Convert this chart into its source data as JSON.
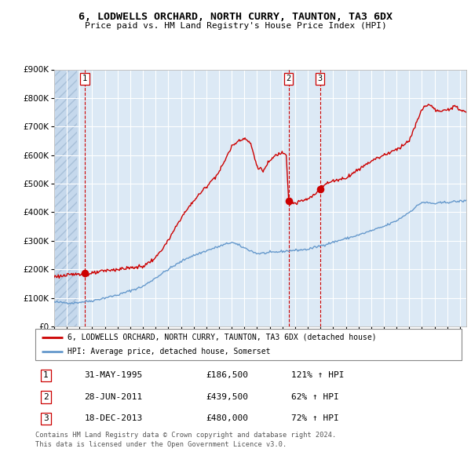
{
  "title": "6, LODWELLS ORCHARD, NORTH CURRY, TAUNTON, TA3 6DX",
  "subtitle": "Price paid vs. HM Land Registry's House Price Index (HPI)",
  "legend_line1": "6, LODWELLS ORCHARD, NORTH CURRY, TAUNTON, TA3 6DX (detached house)",
  "legend_line2": "HPI: Average price, detached house, Somerset",
  "footer1": "Contains HM Land Registry data © Crown copyright and database right 2024.",
  "footer2": "This data is licensed under the Open Government Licence v3.0.",
  "transactions": [
    {
      "num": 1,
      "date": "31-MAY-1995",
      "price": 186500,
      "pct": "121%",
      "dir": "↑"
    },
    {
      "num": 2,
      "date": "28-JUN-2011",
      "price": 439500,
      "pct": "62%",
      "dir": "↑"
    },
    {
      "num": 3,
      "date": "18-DEC-2013",
      "price": 480000,
      "pct": "72%",
      "dir": "↑"
    }
  ],
  "transaction_years": [
    1995.42,
    2011.49,
    2013.96
  ],
  "transaction_prices": [
    186500,
    439500,
    480000
  ],
  "hpi_color": "#6699cc",
  "price_color": "#cc0000",
  "dot_color": "#cc0000",
  "vline_color": "#cc0000",
  "background_color": "#dce9f5",
  "grid_color": "#ffffff",
  "ylim": [
    0,
    900000
  ],
  "xlim_start": 1993.0,
  "xlim_end": 2025.5,
  "hpi_anchors_x": [
    1993.0,
    1994.5,
    1996,
    1998,
    2000,
    2002,
    2003.5,
    2005,
    2007,
    2009,
    2010,
    2011.5,
    2013,
    2015,
    2017,
    2019,
    2020,
    2021,
    2022,
    2023,
    2024,
    2025.5
  ],
  "hpi_anchors_y": [
    85000,
    82000,
    90000,
    110000,
    140000,
    200000,
    240000,
    265000,
    295000,
    255000,
    258000,
    265000,
    270000,
    295000,
    320000,
    350000,
    370000,
    400000,
    435000,
    430000,
    435000,
    440000
  ],
  "price_anchors_x": [
    1993.0,
    1994,
    1995.0,
    1995.5,
    1996,
    1997,
    1998,
    1999,
    2000,
    2001,
    2002,
    2003,
    2004,
    2005,
    2006,
    2007,
    2007.5,
    2008,
    2008.5,
    2009,
    2009.5,
    2010,
    2010.5,
    2011.0,
    2011.3,
    2011.49,
    2011.6,
    2011.8,
    2012,
    2012.5,
    2013,
    2013.5,
    2013.96,
    2014.0,
    2014.5,
    2015,
    2016,
    2017,
    2018,
    2019,
    2020,
    2021,
    2022,
    2022.5,
    2023,
    2023.5,
    2024,
    2024.5,
    2025.0,
    2025.5
  ],
  "price_anchors_y": [
    175000,
    178000,
    186500,
    180000,
    185000,
    195000,
    200000,
    205000,
    210000,
    240000,
    300000,
    380000,
    440000,
    490000,
    540000,
    630000,
    650000,
    660000,
    640000,
    560000,
    545000,
    580000,
    600000,
    610000,
    605000,
    439500,
    430000,
    435000,
    430000,
    440000,
    445000,
    460000,
    480000,
    490000,
    500000,
    510000,
    520000,
    550000,
    580000,
    600000,
    620000,
    650000,
    760000,
    780000,
    760000,
    750000,
    760000,
    770000,
    760000,
    750000
  ]
}
